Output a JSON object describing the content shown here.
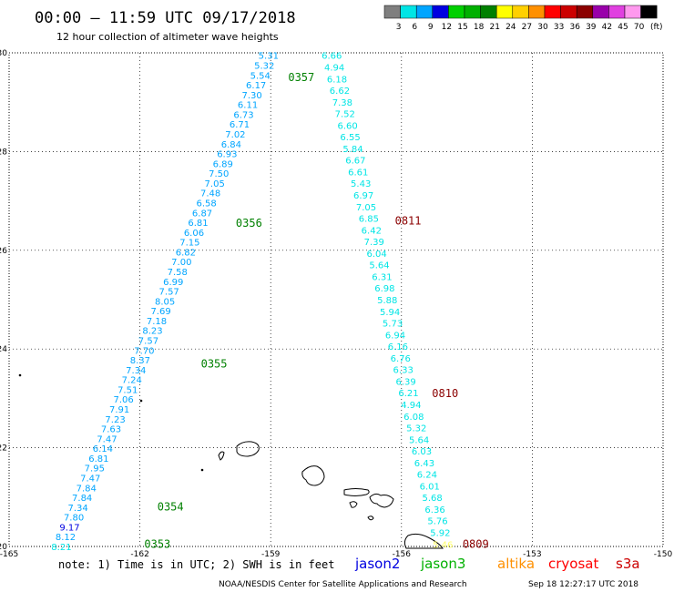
{
  "header": {
    "title": "00:00 – 11:59 UTC 09/17/2018",
    "subtitle": "12 hour collection of altimeter wave heights"
  },
  "legend": {
    "unit": "(ft)",
    "bins": [
      {
        "label": "3",
        "color": "#7f7f7f"
      },
      {
        "label": "6",
        "color": "#00e5e5"
      },
      {
        "label": "9",
        "color": "#00a5ff"
      },
      {
        "label": "12",
        "color": "#0000e0"
      },
      {
        "label": "15",
        "color": "#00d000"
      },
      {
        "label": "18",
        "color": "#00b000"
      },
      {
        "label": "21",
        "color": "#008000"
      },
      {
        "label": "24",
        "color": "#ffff00"
      },
      {
        "label": "27",
        "color": "#ffd000"
      },
      {
        "label": "30",
        "color": "#ff9000"
      },
      {
        "label": "33",
        "color": "#ff0000"
      },
      {
        "label": "36",
        "color": "#cc0000"
      },
      {
        "label": "39",
        "color": "#8b0000"
      },
      {
        "label": "42",
        "color": "#9900aa"
      },
      {
        "label": "45",
        "color": "#e040e0"
      },
      {
        "label": "70",
        "color": "#ff99ee"
      },
      {
        "label": "",
        "color": "#000000"
      }
    ]
  },
  "axes": {
    "lon_ticks": [
      "-165",
      "-162",
      "-159",
      "-156",
      "-153",
      "-150"
    ],
    "lat_ticks": [
      "20",
      "22",
      "24",
      "26",
      "28",
      "30"
    ]
  },
  "track_west": {
    "values": [
      "8.21",
      "8.12",
      "9.17",
      "7.80",
      "7.34",
      "7.84",
      "7.84",
      "7.47",
      "7.95",
      "6.81",
      "6.14",
      "7.47",
      "7.63",
      "7.23",
      "7.91",
      "7.06",
      "7.51",
      "7.24",
      "7.34",
      "8.37",
      "7.70",
      "7.57",
      "8.23",
      "7.18",
      "7.69",
      "8.05",
      "7.57",
      "6.99",
      "7.58",
      "7.00",
      "6.82",
      "7.15",
      "6.06",
      "6.81",
      "6.87",
      "6.58",
      "7.48",
      "7.05",
      "7.50",
      "6.89",
      "6.93",
      "6.84",
      "7.02",
      "6.71",
      "6.73",
      "6.11",
      "7.30",
      "6.17",
      "5.54",
      "5.32",
      "5.31"
    ],
    "colors": [
      "#00e5e5",
      "#00a5ff",
      "#0000e0",
      "#00a5ff",
      "#00a5ff",
      "#00a5ff",
      "#00a5ff",
      "#00a5ff",
      "#00a5ff",
      "#00a5ff",
      "#00a5ff",
      "#00a5ff",
      "#00a5ff",
      "#00a5ff",
      "#00a5ff",
      "#00a5ff",
      "#00a5ff",
      "#00a5ff",
      "#00a5ff",
      "#00a5ff",
      "#00a5ff",
      "#00a5ff",
      "#00a5ff",
      "#00a5ff",
      "#00a5ff",
      "#00a5ff",
      "#00a5ff",
      "#00a5ff",
      "#00a5ff",
      "#00a5ff",
      "#00a5ff",
      "#00a5ff",
      "#00a5ff",
      "#00a5ff",
      "#00a5ff",
      "#00a5ff",
      "#00a5ff",
      "#00a5ff",
      "#00a5ff",
      "#00a5ff",
      "#00a5ff",
      "#00a5ff",
      "#00a5ff",
      "#00a5ff",
      "#00a5ff",
      "#00a5ff",
      "#00a5ff",
      "#00a5ff",
      "#00a5ff",
      "#00a5ff",
      "#00a5ff"
    ],
    "time_labels": [
      {
        "text": "0353",
        "color": "#008000",
        "lat": 20.05,
        "lon": -161.9
      },
      {
        "text": "0354",
        "color": "#008000",
        "lat": 20.8,
        "lon": -161.6
      },
      {
        "text": "0355",
        "color": "#008000",
        "lat": 23.7,
        "lon": -160.6
      },
      {
        "text": "0356",
        "color": "#008000",
        "lat": 26.55,
        "lon": -159.8
      },
      {
        "text": "0357",
        "color": "#008000",
        "lat": 29.5,
        "lon": -158.6
      }
    ]
  },
  "track_east": {
    "values": [
      "6.66",
      "4.94",
      "6.18",
      "6.62",
      "7.38",
      "7.52",
      "6.60",
      "6.55",
      "5.84",
      "6.67",
      "6.61",
      "5.43",
      "6.97",
      "7.05",
      "6.85",
      "6.42",
      "7.39",
      "6.04",
      "5.64",
      "6.31",
      "6.98",
      "5.88",
      "5.94",
      "5.73",
      "6.94",
      "6.16",
      "6.76",
      "6.33",
      "6.39",
      "6.21",
      "4.94",
      "6.08",
      "5.32",
      "5.64",
      "6.03",
      "6.43",
      "6.24",
      "6.01",
      "5.68",
      "6.36",
      "5.76",
      "5.92",
      "5.46"
    ],
    "colors": [
      "#00e5e5",
      "#00e5e5",
      "#00e5e5",
      "#00e5e5",
      "#00e5e5",
      "#00e5e5",
      "#00e5e5",
      "#00e5e5",
      "#00e5e5",
      "#00e5e5",
      "#00e5e5",
      "#00e5e5",
      "#00e5e5",
      "#00e5e5",
      "#00e5e5",
      "#00e5e5",
      "#00e5e5",
      "#00e5e5",
      "#00e5e5",
      "#00e5e5",
      "#00e5e5",
      "#00e5e5",
      "#00e5e5",
      "#00e5e5",
      "#00e5e5",
      "#00e5e5",
      "#00e5e5",
      "#00e5e5",
      "#00e5e5",
      "#00e5e5",
      "#00e5e5",
      "#00e5e5",
      "#00e5e5",
      "#00e5e5",
      "#00e5e5",
      "#00e5e5",
      "#00e5e5",
      "#00e5e5",
      "#00e5e5",
      "#00e5e5",
      "#00e5e5",
      "#00e5e5",
      "#ffff66"
    ],
    "time_labels": [
      {
        "text": "0811",
        "color": "#8b0000",
        "lat": 26.6,
        "lon": -156.15
      },
      {
        "text": "0810",
        "color": "#8b0000",
        "lat": 23.1,
        "lon": -155.3
      },
      {
        "text": "0809",
        "color": "#8b0000",
        "lat": 20.05,
        "lon": -154.6
      }
    ]
  },
  "footer": {
    "note": "note: 1) Time is in UTC; 2) SWH is in feet",
    "satellites": [
      {
        "name": "jason2",
        "color": "#0000e0"
      },
      {
        "name": "jason3",
        "color": "#00b000"
      },
      {
        "name": "altika",
        "color": "#ff9000"
      },
      {
        "name": "cryosat",
        "color": "#ff0000"
      },
      {
        "name": "s3a",
        "color": "#cc0000"
      }
    ],
    "credit": "NOAA/NESDIS Center for Satellite Applications and Research",
    "timestamp": "Sep 18 12:27:17 UTC 2018"
  }
}
